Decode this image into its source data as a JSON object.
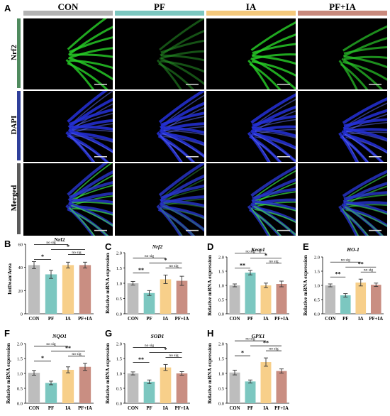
{
  "figure_panels": {
    "A": "A",
    "B": "B",
    "C": "C",
    "D": "D",
    "E": "E",
    "F": "F",
    "G": "G",
    "H": "H"
  },
  "group_headers": [
    {
      "label": "CON",
      "color": "#b3b3b3"
    },
    {
      "label": "PF",
      "color": "#7cc7c0"
    },
    {
      "label": "IA",
      "color": "#f5c97c"
    },
    {
      "label": "PF+IA",
      "color": "#c98a7d"
    }
  ],
  "row_labels": [
    {
      "label": "Nrf2",
      "color": "#4f8a5e"
    },
    {
      "label": "DAPI",
      "color": "#2f3f9a"
    },
    {
      "label": "Merged",
      "color": "#5a5a5a"
    }
  ],
  "chart_data": [
    {
      "panel": "B",
      "type": "bar",
      "title": "Nrf2",
      "ylabel": "IntDean/Area",
      "ylim": [
        0,
        60
      ],
      "yticks": [
        0,
        20,
        40,
        60
      ],
      "categories": [
        "CON",
        "PF",
        "IA",
        "PF+IA"
      ],
      "values": [
        42,
        34,
        42,
        42
      ],
      "errors": [
        3,
        3.5,
        2.5,
        2.5
      ],
      "significance": [
        {
          "from": 0,
          "to": 1,
          "label": "*"
        },
        {
          "from": 0,
          "to": 2,
          "label": "no sig"
        },
        {
          "from": 1,
          "to": 3,
          "label": "*"
        },
        {
          "from": 2,
          "to": 3,
          "label": "no sig"
        }
      ]
    },
    {
      "panel": "C",
      "type": "bar",
      "title": "Nrf2",
      "title_italic": true,
      "ylabel": "Relative mRNA expression",
      "ylim": [
        0,
        2.0
      ],
      "yticks": [
        0.0,
        0.5,
        1.0,
        1.5,
        2.0
      ],
      "categories": [
        "CON",
        "PF",
        "IA",
        "PF+IA"
      ],
      "values": [
        1.0,
        0.68,
        1.13,
        1.08
      ],
      "errors": [
        0.06,
        0.08,
        0.14,
        0.15
      ],
      "significance": [
        {
          "from": 0,
          "to": 1,
          "label": "**"
        },
        {
          "from": 0,
          "to": 2,
          "label": "no sig"
        },
        {
          "from": 1,
          "to": 3,
          "label": "*"
        },
        {
          "from": 2,
          "to": 3,
          "label": "no sig"
        }
      ]
    },
    {
      "panel": "D",
      "type": "bar",
      "title": "Keap1",
      "title_italic": true,
      "ylabel": "Relative mRNA expression",
      "ylim": [
        0,
        2.0
      ],
      "yticks": [
        0.0,
        0.5,
        1.0,
        1.5,
        2.0
      ],
      "categories": [
        "CON",
        "PF",
        "IA",
        "PF+IA"
      ],
      "values": [
        1.0,
        1.45,
        1.0,
        1.05
      ],
      "errors": [
        0.05,
        0.08,
        0.08,
        0.1
      ],
      "significance": [
        {
          "from": 0,
          "to": 1,
          "label": "**"
        },
        {
          "from": 0,
          "to": 2,
          "label": "no sig"
        },
        {
          "from": 1,
          "to": 3,
          "label": "*"
        },
        {
          "from": 2,
          "to": 3,
          "label": "no sig"
        }
      ]
    },
    {
      "panel": "E",
      "type": "bar",
      "title": "HO-1",
      "title_italic": true,
      "ylabel": "Relative mRNA expression",
      "ylim": [
        0,
        2.0
      ],
      "yticks": [
        0.0,
        0.5,
        1.0,
        1.5,
        2.0
      ],
      "categories": [
        "CON",
        "PF",
        "IA",
        "PF+IA"
      ],
      "values": [
        1.0,
        0.65,
        1.1,
        1.02
      ],
      "errors": [
        0.05,
        0.06,
        0.12,
        0.06
      ],
      "significance": [
        {
          "from": 0,
          "to": 1,
          "label": "**"
        },
        {
          "from": 0,
          "to": 2,
          "label": "no sig"
        },
        {
          "from": 1,
          "to": 3,
          "label": "**"
        },
        {
          "from": 2,
          "to": 3,
          "label": "no sig"
        }
      ]
    },
    {
      "panel": "F",
      "type": "bar",
      "title": "NQO1",
      "title_italic": true,
      "ylabel": "Relative mRNA expression",
      "ylim": [
        0,
        2.0
      ],
      "yticks": [
        0.0,
        0.5,
        1.0,
        1.5,
        2.0
      ],
      "categories": [
        "CON",
        "PF",
        "IA",
        "PF+IA"
      ],
      "values": [
        1.02,
        0.68,
        1.12,
        1.22
      ],
      "errors": [
        0.08,
        0.06,
        0.1,
        0.12
      ],
      "significance": [
        {
          "from": 0,
          "to": 1,
          "label": "*"
        },
        {
          "from": 0,
          "to": 2,
          "label": "no sig"
        },
        {
          "from": 1,
          "to": 3,
          "label": "**"
        },
        {
          "from": 2,
          "to": 3,
          "label": "no sig"
        }
      ]
    },
    {
      "panel": "G",
      "type": "bar",
      "title": "SOD1",
      "title_italic": true,
      "ylabel": "Relative mRNA expression",
      "ylim": [
        0,
        2.0
      ],
      "yticks": [
        0.0,
        0.5,
        1.0,
        1.5,
        2.0
      ],
      "categories": [
        "CON",
        "PF",
        "IA",
        "PF+IA"
      ],
      "values": [
        1.0,
        0.72,
        1.2,
        1.0
      ],
      "errors": [
        0.05,
        0.06,
        0.1,
        0.06
      ],
      "significance": [
        {
          "from": 0,
          "to": 1,
          "label": "**"
        },
        {
          "from": 0,
          "to": 2,
          "label": "no sig"
        },
        {
          "from": 1,
          "to": 3,
          "label": "*"
        },
        {
          "from": 2,
          "to": 3,
          "label": "no sig"
        }
      ]
    },
    {
      "panel": "H",
      "type": "bar",
      "title": "GPX1",
      "title_italic": true,
      "ylabel": "Relative mRNA expression",
      "ylim": [
        0,
        2.0
      ],
      "yticks": [
        0.0,
        0.5,
        1.0,
        1.5,
        2.0
      ],
      "categories": [
        "CON",
        "PF",
        "IA",
        "PF+IA"
      ],
      "values": [
        1.03,
        0.73,
        1.38,
        1.08
      ],
      "errors": [
        0.08,
        0.05,
        0.14,
        0.07
      ],
      "significance": [
        {
          "from": 0,
          "to": 1,
          "label": "*"
        },
        {
          "from": 0,
          "to": 2,
          "label": "no sig"
        },
        {
          "from": 1,
          "to": 3,
          "label": "**"
        },
        {
          "from": 2,
          "to": 3,
          "label": "no sig"
        }
      ]
    }
  ],
  "bar_colors": [
    "#bdbdbd",
    "#7cc7c0",
    "#f7cf8a",
    "#c98e82"
  ]
}
